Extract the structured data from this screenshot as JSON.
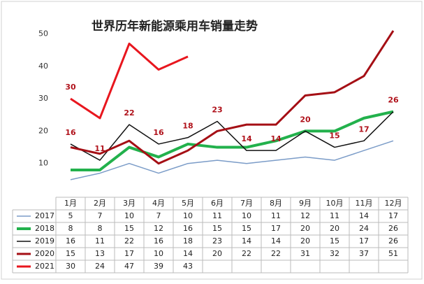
{
  "chart_data": {
    "type": "line",
    "title": "世界历年新能源乘用车销量走势",
    "categories": [
      "1月",
      "2月",
      "3月",
      "4月",
      "5月",
      "6月",
      "7月",
      "8月",
      "9月",
      "10月",
      "11月",
      "12月"
    ],
    "series": [
      {
        "name": "2017",
        "color": "#7b9cc8",
        "values": [
          5,
          7,
          10,
          7,
          10,
          11,
          10,
          11,
          12,
          11,
          14,
          17
        ]
      },
      {
        "name": "2018",
        "color": "#22b14c",
        "values": [
          8,
          8,
          15,
          12,
          16,
          15,
          15,
          17,
          20,
          20,
          24,
          26
        ]
      },
      {
        "name": "2019",
        "color": "#111111",
        "values": [
          16,
          11,
          22,
          16,
          18,
          23,
          14,
          14,
          20,
          15,
          17,
          26
        ],
        "data_labels": "all"
      },
      {
        "name": "2020",
        "color": "#a50f15",
        "values": [
          15,
          13,
          17,
          10,
          14,
          20,
          22,
          22,
          31,
          32,
          37,
          51
        ]
      },
      {
        "name": "2021",
        "color": "#e8161e",
        "values": [
          30,
          24,
          47,
          39,
          43,
          null,
          null,
          null,
          null,
          null,
          null,
          null
        ],
        "data_labels": "first"
      }
    ],
    "ylim": [
      0,
      54
    ],
    "yticks": [
      10,
      20,
      30,
      40,
      50
    ],
    "label_color": "#b0121b",
    "data_table": true
  }
}
